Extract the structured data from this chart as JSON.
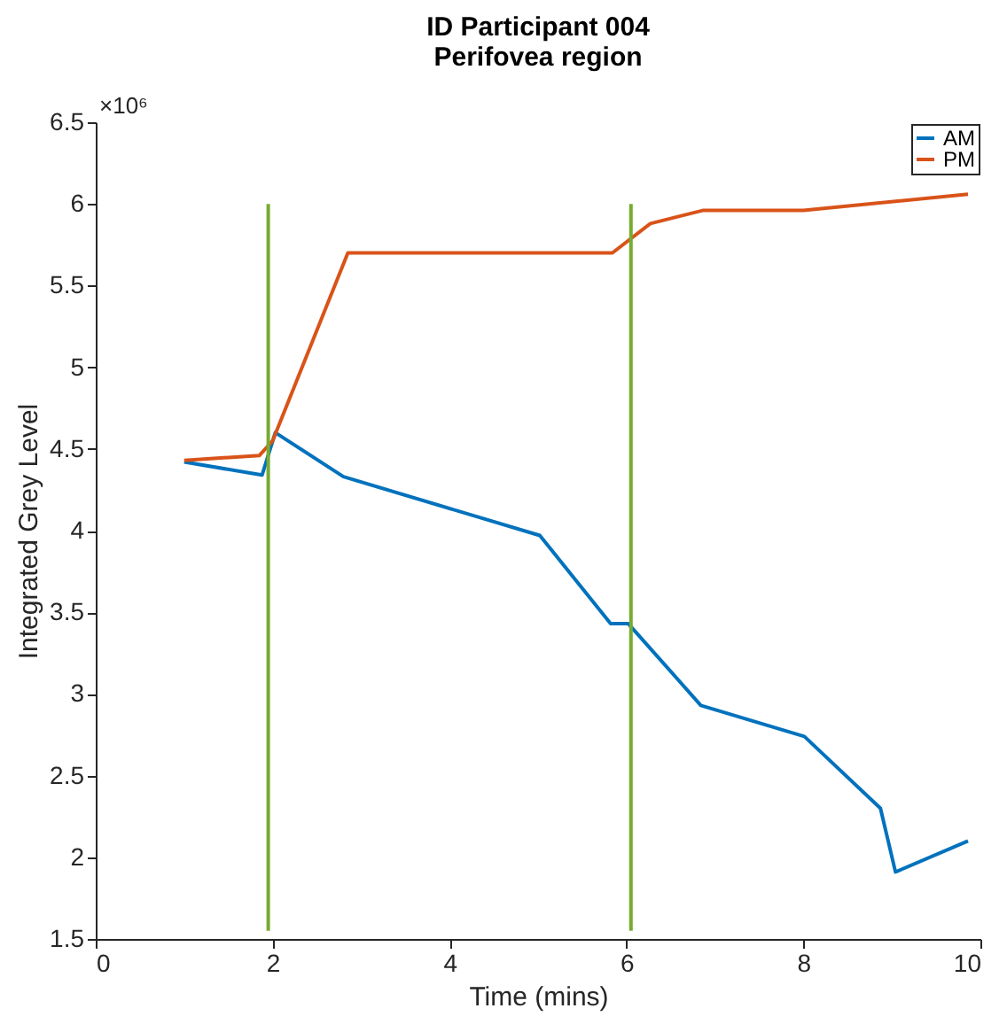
{
  "chart_data": {
    "type": "line",
    "title": "ID Participant 004\nPerifovea region",
    "xlabel": "Time (mins)",
    "ylabel": "Integrated Grey Level",
    "annotations": [
      "×10⁶"
    ],
    "series": [
      {
        "name": "AM",
        "color": "#0072bd",
        "x": [
          1,
          1.88,
          2.03,
          2.8,
          5.02,
          5.82,
          6.02,
          6.84,
          8.01,
          8.87,
          9.04,
          9.86
        ],
        "values": [
          4.42,
          4.34,
          4.6,
          4.33,
          3.97,
          3.43,
          3.43,
          2.93,
          2.74,
          2.3,
          1.91,
          2.1
        ]
      },
      {
        "name": "PM",
        "color": "#d95319",
        "x": [
          1,
          1.85,
          2.0,
          2.85,
          5.84,
          6.27,
          6.86,
          8.0,
          9.86
        ],
        "values": [
          4.43,
          4.46,
          4.55,
          5.7,
          5.7,
          5.88,
          5.96,
          5.96,
          6.06
        ]
      },
      {
        "color": "#77ac30",
        "x": [
          1.95,
          1.95
        ],
        "values": [
          1.55,
          6.0
        ]
      },
      {
        "color": "#77ac30",
        "x": [
          6.05,
          6.05
        ],
        "values": [
          1.55,
          6.0
        ]
      }
    ],
    "xlim": [
      0,
      10
    ],
    "xticks": [
      0,
      2,
      4,
      6,
      8,
      10
    ],
    "ylim": [
      1.5,
      6.5
    ],
    "yticks": [
      1.5,
      2,
      2.5,
      3,
      3.5,
      4,
      4.5,
      5,
      5.5,
      6,
      6.5
    ],
    "grid": false,
    "legend": "top right",
    "marker": "none",
    "line_style": "solid"
  }
}
